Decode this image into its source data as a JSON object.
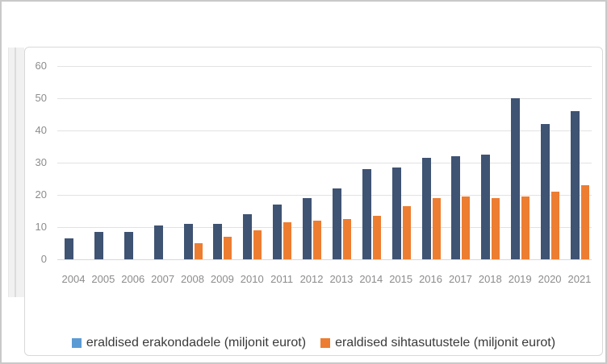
{
  "chart_data": {
    "type": "bar",
    "title": "",
    "categories": [
      "2004",
      "2005",
      "2006",
      "2007",
      "2008",
      "2009",
      "2010",
      "2011",
      "2012",
      "2013",
      "2014",
      "2015",
      "2016",
      "2017",
      "2018",
      "2019",
      "2020",
      "2021"
    ],
    "series": [
      {
        "name": "eraldised erakondadele (miljonit eurot)",
        "bar_color": "#3f5373",
        "legend_color": "#5b9bd5",
        "values": [
          6.5,
          8.5,
          8.5,
          10.5,
          11,
          11,
          14,
          17,
          19,
          22,
          28,
          28.5,
          31.5,
          32,
          32.5,
          50,
          42,
          46
        ]
      },
      {
        "name": "eraldised sihtasutustele (miljonit eurot)",
        "bar_color": "#ed7d31",
        "legend_color": "#ed7d31",
        "values": [
          0,
          0,
          0,
          0,
          5,
          7,
          9,
          11.5,
          12,
          12.5,
          13.5,
          16.5,
          19,
          19.5,
          19,
          19.5,
          21,
          23
        ]
      }
    ],
    "xlabel": "",
    "ylabel": "",
    "ylim": [
      0,
      60
    ],
    "yticks": [
      0,
      10,
      20,
      30,
      40,
      50,
      60
    ],
    "grid": true,
    "legend_position": "bottom"
  },
  "colors": {
    "grid": "#e2e2e2",
    "axis_text": "#8c8c8c",
    "legend_text": "#3a3a3a",
    "frame_border": "#d9d9d9",
    "outer_border": "#c9c9c9",
    "strip_fill": "#f2f1f1"
  }
}
